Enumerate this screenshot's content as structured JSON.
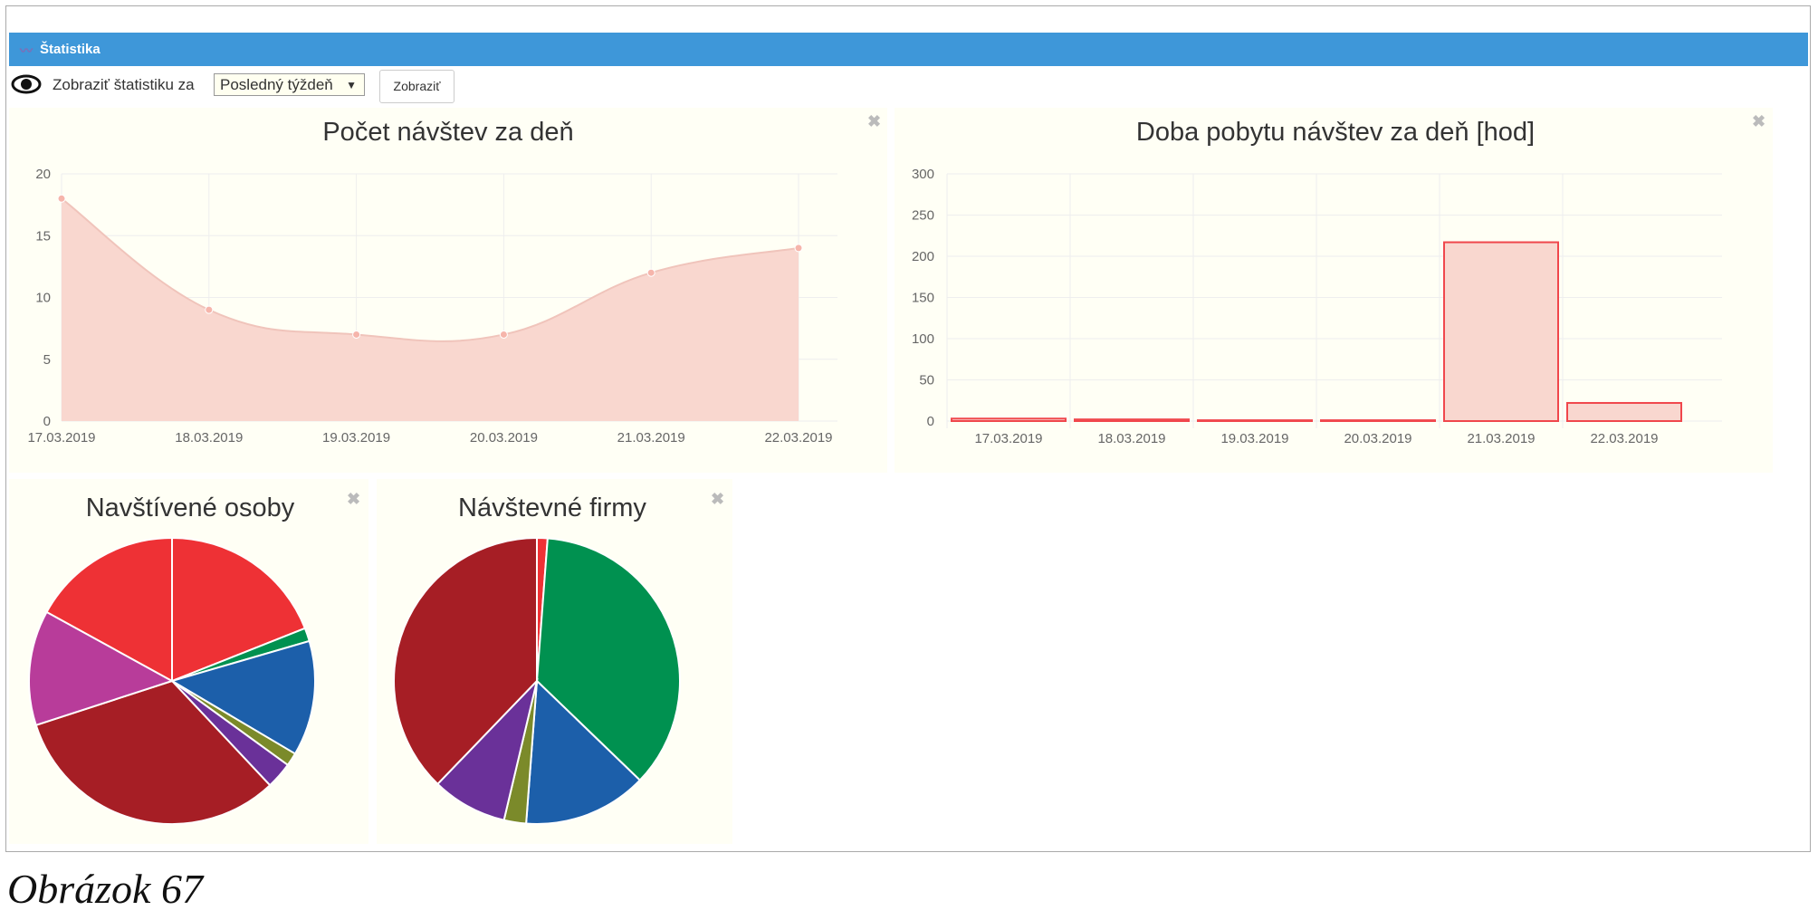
{
  "header": {
    "title": "Štatistika",
    "icon": "chart-line-icon"
  },
  "toolbar": {
    "label": "Zobraziť štatistiku za",
    "select_value": "Posledný týždeň",
    "button": "Zobraziť",
    "icon": "eye-icon"
  },
  "close_glyph": "✖",
  "caption": "Obrázok 67",
  "chart_data": [
    {
      "type": "area",
      "title": "Počet návštev za deň",
      "categories": [
        "17.03.2019",
        "18.03.2019",
        "19.03.2019",
        "20.03.2019",
        "21.03.2019",
        "22.03.2019"
      ],
      "values": [
        18,
        9,
        7,
        7,
        12,
        14
      ],
      "ylim": [
        0,
        20
      ],
      "yticks": [
        "0",
        "5",
        "10",
        "15",
        "20"
      ],
      "color": "#f4b6aa"
    },
    {
      "type": "bar",
      "title": "Doba pobytu návštev za deň [hod]",
      "categories": [
        "17.03.2019",
        "18.03.2019",
        "19.03.2019",
        "20.03.2019",
        "21.03.2019",
        "22.03.2019"
      ],
      "values": [
        3,
        2,
        1,
        1,
        217,
        22
      ],
      "ylim": [
        0,
        300
      ],
      "yticks": [
        "0",
        "50",
        "100",
        "150",
        "200",
        "250",
        "300"
      ],
      "color": "#f0474c"
    },
    {
      "type": "pie",
      "title": "Navštívené osoby",
      "values": [
        19,
        1.5,
        13,
        1.5,
        3,
        32,
        13,
        17
      ],
      "colors": [
        "#ee3135",
        "#009150",
        "#1c5faa",
        "#7b8a2a",
        "#6a3199",
        "#a61e25",
        "#b83c9a",
        "#ee3135"
      ]
    },
    {
      "type": "pie",
      "title": "Návštevné firmy",
      "values": [
        1.2,
        36,
        14,
        2.5,
        8.5,
        37.8
      ],
      "colors": [
        "#ee3135",
        "#009150",
        "#1c5faa",
        "#7b8a2a",
        "#6a3199",
        "#a61e25"
      ]
    }
  ]
}
